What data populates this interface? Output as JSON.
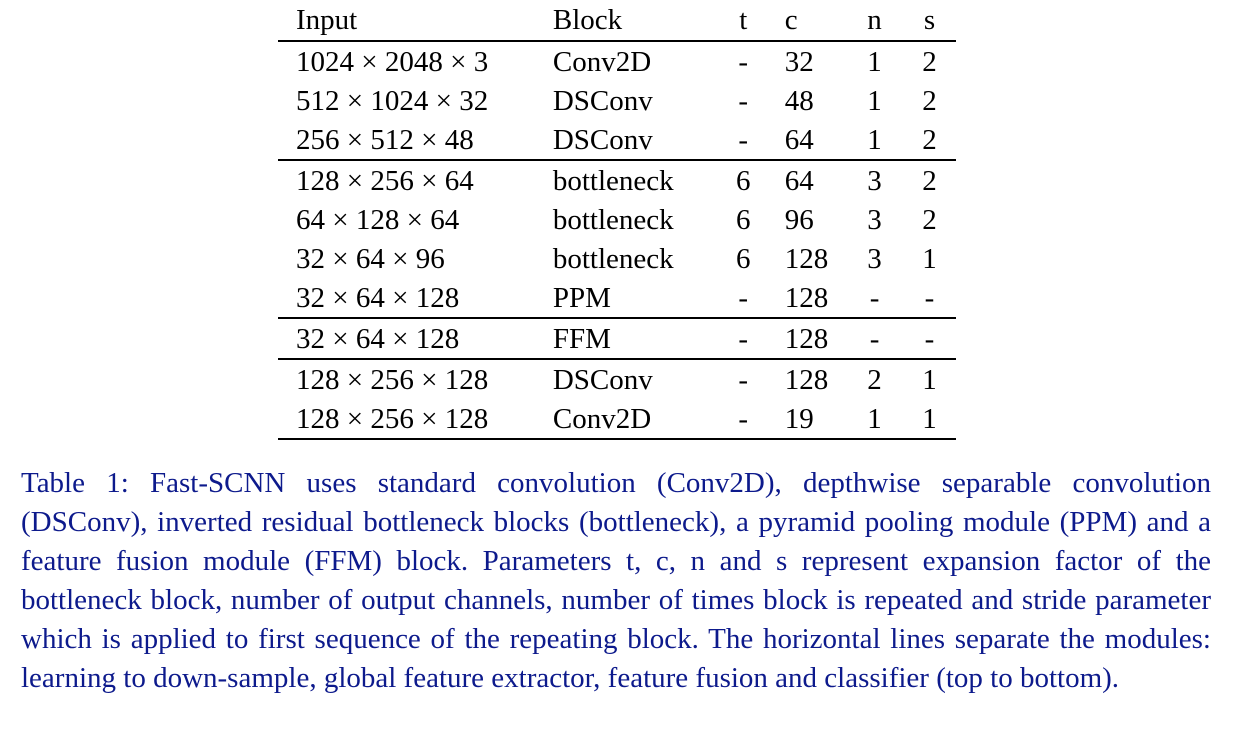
{
  "table": {
    "headers": {
      "input": "Input",
      "block": "Block",
      "t": "t",
      "c": "c",
      "n": "n",
      "s": "s"
    },
    "rows": [
      {
        "input": "1024 × 2048 × 3",
        "block": "Conv2D",
        "t": "-",
        "c": "32",
        "n": "1",
        "s": "2"
      },
      {
        "input": "512 × 1024 × 32",
        "block": "DSConv",
        "t": "-",
        "c": "48",
        "n": "1",
        "s": "2"
      },
      {
        "input": "256 × 512 × 48",
        "block": "DSConv",
        "t": "-",
        "c": "64",
        "n": "1",
        "s": "2"
      },
      {
        "input": "128 × 256 × 64",
        "block": "bottleneck",
        "t": "6",
        "c": "64",
        "n": "3",
        "s": "2"
      },
      {
        "input": "64 × 128 × 64",
        "block": "bottleneck",
        "t": "6",
        "c": "96",
        "n": "3",
        "s": "2"
      },
      {
        "input": "32 × 64 × 96",
        "block": "bottleneck",
        "t": "6",
        "c": "128",
        "n": "3",
        "s": "1"
      },
      {
        "input": "32 × 64 × 128",
        "block": "PPM",
        "t": "-",
        "c": "128",
        "n": "-",
        "s": "-"
      },
      {
        "input": "32 × 64 × 128",
        "block": "FFM",
        "t": "-",
        "c": "128",
        "n": "-",
        "s": "-"
      },
      {
        "input": "128 × 256 × 128",
        "block": "DSConv",
        "t": "-",
        "c": "128",
        "n": "2",
        "s": "1"
      },
      {
        "input": "128 × 256 × 128",
        "block": "Conv2D",
        "t": "-",
        "c": "19",
        "n": "1",
        "s": "1"
      }
    ]
  },
  "caption": {
    "label": "Table 1:",
    "text": "Fast-SCNN uses standard convolution (Conv2D), depthwise separable convolution (DSConv), inverted residual bottleneck blocks (bottleneck), a pyramid pooling module (PPM) and a feature fusion module (FFM) block. Parameters t, c, n and s represent expansion factor of the bottleneck block, number of output channels, number of times block is repeated and stride parameter which is applied to first sequence of the repeating block. The horizontal lines separate the modules: learning to down-sample, global feature extractor, feature fusion and classifier (top to bottom)."
  }
}
